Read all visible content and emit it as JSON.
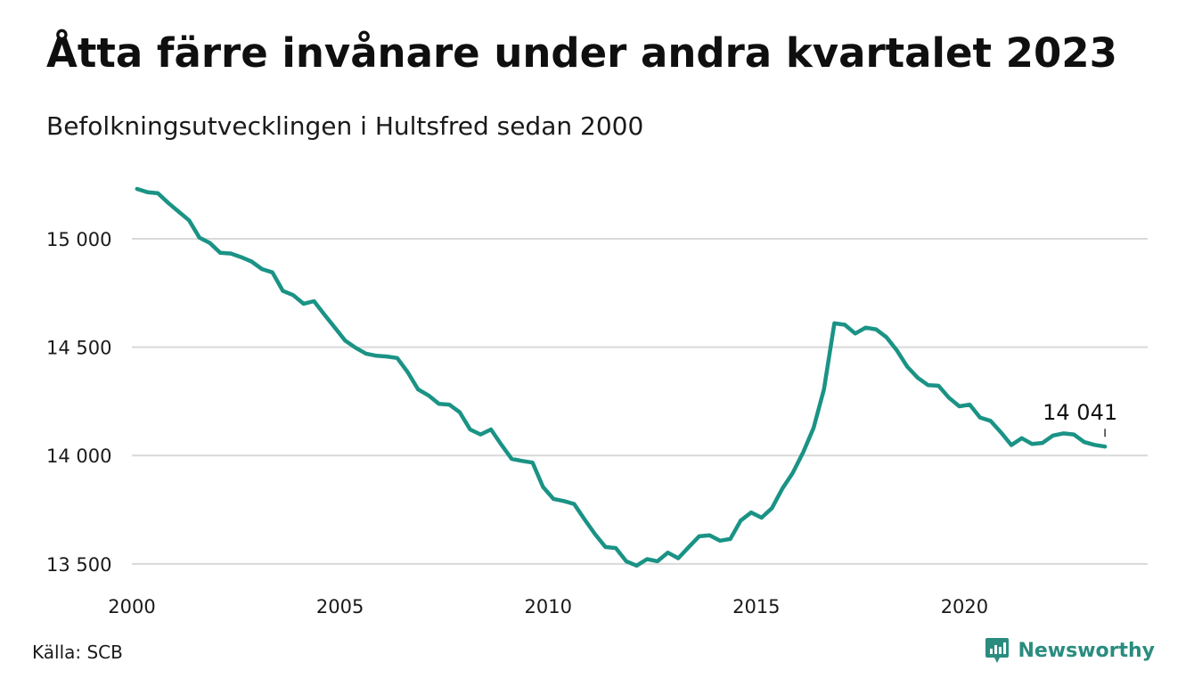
{
  "title": "Åtta färre invånare under andra kvartalet 2023",
  "subtitle": "Befolkningsutvecklingen i Hultsfred sedan 2000",
  "source": "Källa: SCB",
  "brand": "Newsworthy",
  "colors": {
    "line": "#1a9385",
    "grid": "#d9d9d9",
    "brand": "#2a8c7f"
  },
  "chart_data": {
    "type": "line",
    "title": "Åtta färre invånare under andra kvartalet 2023",
    "subtitle": "Befolkningsutvecklingen i Hultsfred sedan 2000",
    "xlabel": "",
    "ylabel": "",
    "xlim": [
      2000,
      2024.4
    ],
    "ylim": [
      13450,
      15300
    ],
    "x_ticks": [
      2000,
      2005,
      2010,
      2015,
      2020
    ],
    "x_tick_labels": [
      "2000",
      "2005",
      "2010",
      "2015",
      "2020"
    ],
    "y_ticks": [
      13500,
      14000,
      14500,
      15000
    ],
    "y_tick_labels": [
      "13 500",
      "14 000",
      "14 500",
      "15 000"
    ],
    "grid": "horizontal",
    "legend": "none",
    "annotation": {
      "x": 2023.375,
      "y": 14041,
      "text": "14 041"
    },
    "series": [
      {
        "x": [
          2000.125,
          2000.375,
          2000.625,
          2000.875,
          2001.125,
          2001.375,
          2001.625,
          2001.875,
          2002.125,
          2002.375,
          2002.625,
          2002.875,
          2003.125,
          2003.375,
          2003.625,
          2003.875,
          2004.125,
          2004.375,
          2004.625,
          2004.875,
          2005.125,
          2005.375,
          2005.625,
          2005.875,
          2006.125,
          2006.375,
          2006.625,
          2006.875,
          2007.125,
          2007.375,
          2007.625,
          2007.875,
          2008.125,
          2008.375,
          2008.625,
          2008.875,
          2009.125,
          2009.375,
          2009.625,
          2009.875,
          2010.125,
          2010.375,
          2010.625,
          2010.875,
          2011.125,
          2011.375,
          2011.625,
          2011.875,
          2012.125,
          2012.375,
          2012.625,
          2012.875,
          2013.125,
          2013.375,
          2013.625,
          2013.875,
          2014.125,
          2014.375,
          2014.625,
          2014.875,
          2015.125,
          2015.375,
          2015.625,
          2015.875,
          2016.125,
          2016.375,
          2016.625,
          2016.875,
          2017.125,
          2017.375,
          2017.625,
          2017.875,
          2018.125,
          2018.375,
          2018.625,
          2018.875,
          2019.125,
          2019.375,
          2019.625,
          2019.875,
          2020.125,
          2020.375,
          2020.625,
          2020.875,
          2021.125,
          2021.375,
          2021.625,
          2021.875,
          2022.125,
          2022.375,
          2022.625,
          2022.875,
          2023.125,
          2023.375
        ],
        "values": [
          15230,
          15215,
          15210,
          15165,
          15125,
          15085,
          15005,
          14980,
          14935,
          14932,
          14915,
          14895,
          14860,
          14845,
          14760,
          14740,
          14700,
          14712,
          14650,
          14590,
          14530,
          14497,
          14470,
          14460,
          14457,
          14450,
          14385,
          14305,
          14277,
          14238,
          14235,
          14200,
          14120,
          14097,
          14120,
          14050,
          13984,
          13975,
          13967,
          13855,
          13800,
          13790,
          13776,
          13705,
          13637,
          13578,
          13573,
          13512,
          13492,
          13522,
          13512,
          13552,
          13526,
          13577,
          13627,
          13632,
          13607,
          13615,
          13700,
          13737,
          13713,
          13757,
          13847,
          13920,
          14015,
          14128,
          14305,
          14610,
          14603,
          14563,
          14590,
          14582,
          14546,
          14485,
          14410,
          14359,
          14325,
          14322,
          14267,
          14227,
          14235,
          14175,
          14160,
          14107,
          14048,
          14080,
          14053,
          14058,
          14092,
          14102,
          14097,
          14062,
          14049,
          14041
        ]
      }
    ]
  }
}
